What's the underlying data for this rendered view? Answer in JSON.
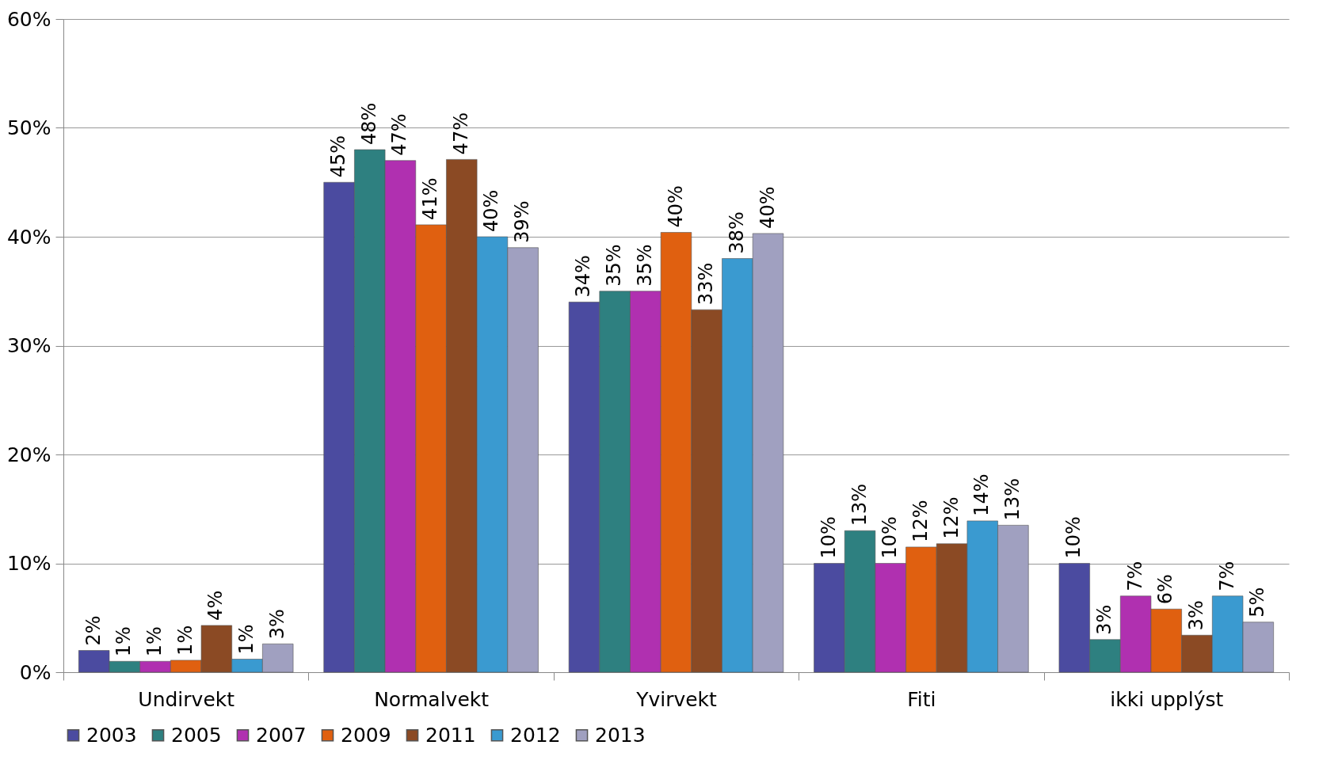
{
  "chart_data": {
    "type": "bar",
    "categories": [
      "Undirvekt",
      "Normalvekt",
      "Yvirvekt",
      "Fiti",
      "ikki upplýst"
    ],
    "series": [
      {
        "name": "2003",
        "color": "#4b4ba0",
        "values": [
          2,
          45,
          34,
          10,
          10
        ],
        "value_labels": [
          "2%",
          "45%",
          "34%",
          "10%",
          "10%"
        ]
      },
      {
        "name": "2005",
        "color": "#2e8080",
        "values": [
          1,
          48,
          35,
          13,
          3
        ],
        "value_labels": [
          "1%",
          "48%",
          "35%",
          "13%",
          "3%"
        ]
      },
      {
        "name": "2007",
        "color": "#b030b0",
        "values": [
          1,
          47,
          35,
          10,
          7
        ],
        "value_labels": [
          "1%",
          "47%",
          "35%",
          "10%",
          "7%"
        ]
      },
      {
        "name": "2009",
        "color": "#e06010",
        "values": [
          1.1,
          41.1,
          40.4,
          11.5,
          5.8
        ],
        "value_labels": [
          "1%",
          "41%",
          "40%",
          "12%",
          "6%"
        ]
      },
      {
        "name": "2011",
        "color": "#8b4a24",
        "values": [
          4.3,
          47.1,
          33.3,
          11.8,
          3.4
        ],
        "value_labels": [
          "4%",
          "47%",
          "33%",
          "12%",
          "3%"
        ]
      },
      {
        "name": "2012",
        "color": "#3a9ad0",
        "values": [
          1.2,
          40,
          38,
          13.9,
          7
        ],
        "value_labels": [
          "1%",
          "40%",
          "38%",
          "14%",
          "7%"
        ]
      },
      {
        "name": "2013",
        "color": "#a0a0c0",
        "values": [
          2.6,
          39,
          40.3,
          13.5,
          4.6
        ],
        "value_labels": [
          "3%",
          "39%",
          "40%",
          "13%",
          "5%"
        ]
      }
    ],
    "ylim": [
      0,
      60
    ],
    "yticks": [
      {
        "value": 0,
        "label": "0%"
      },
      {
        "value": 10,
        "label": "10%"
      },
      {
        "value": 20,
        "label": "20%"
      },
      {
        "value": 30,
        "label": "30%"
      },
      {
        "value": 40,
        "label": "40%"
      },
      {
        "value": 50,
        "label": "50%"
      },
      {
        "value": 60,
        "label": "60%"
      }
    ],
    "grid": "y",
    "legend": "bottom"
  }
}
